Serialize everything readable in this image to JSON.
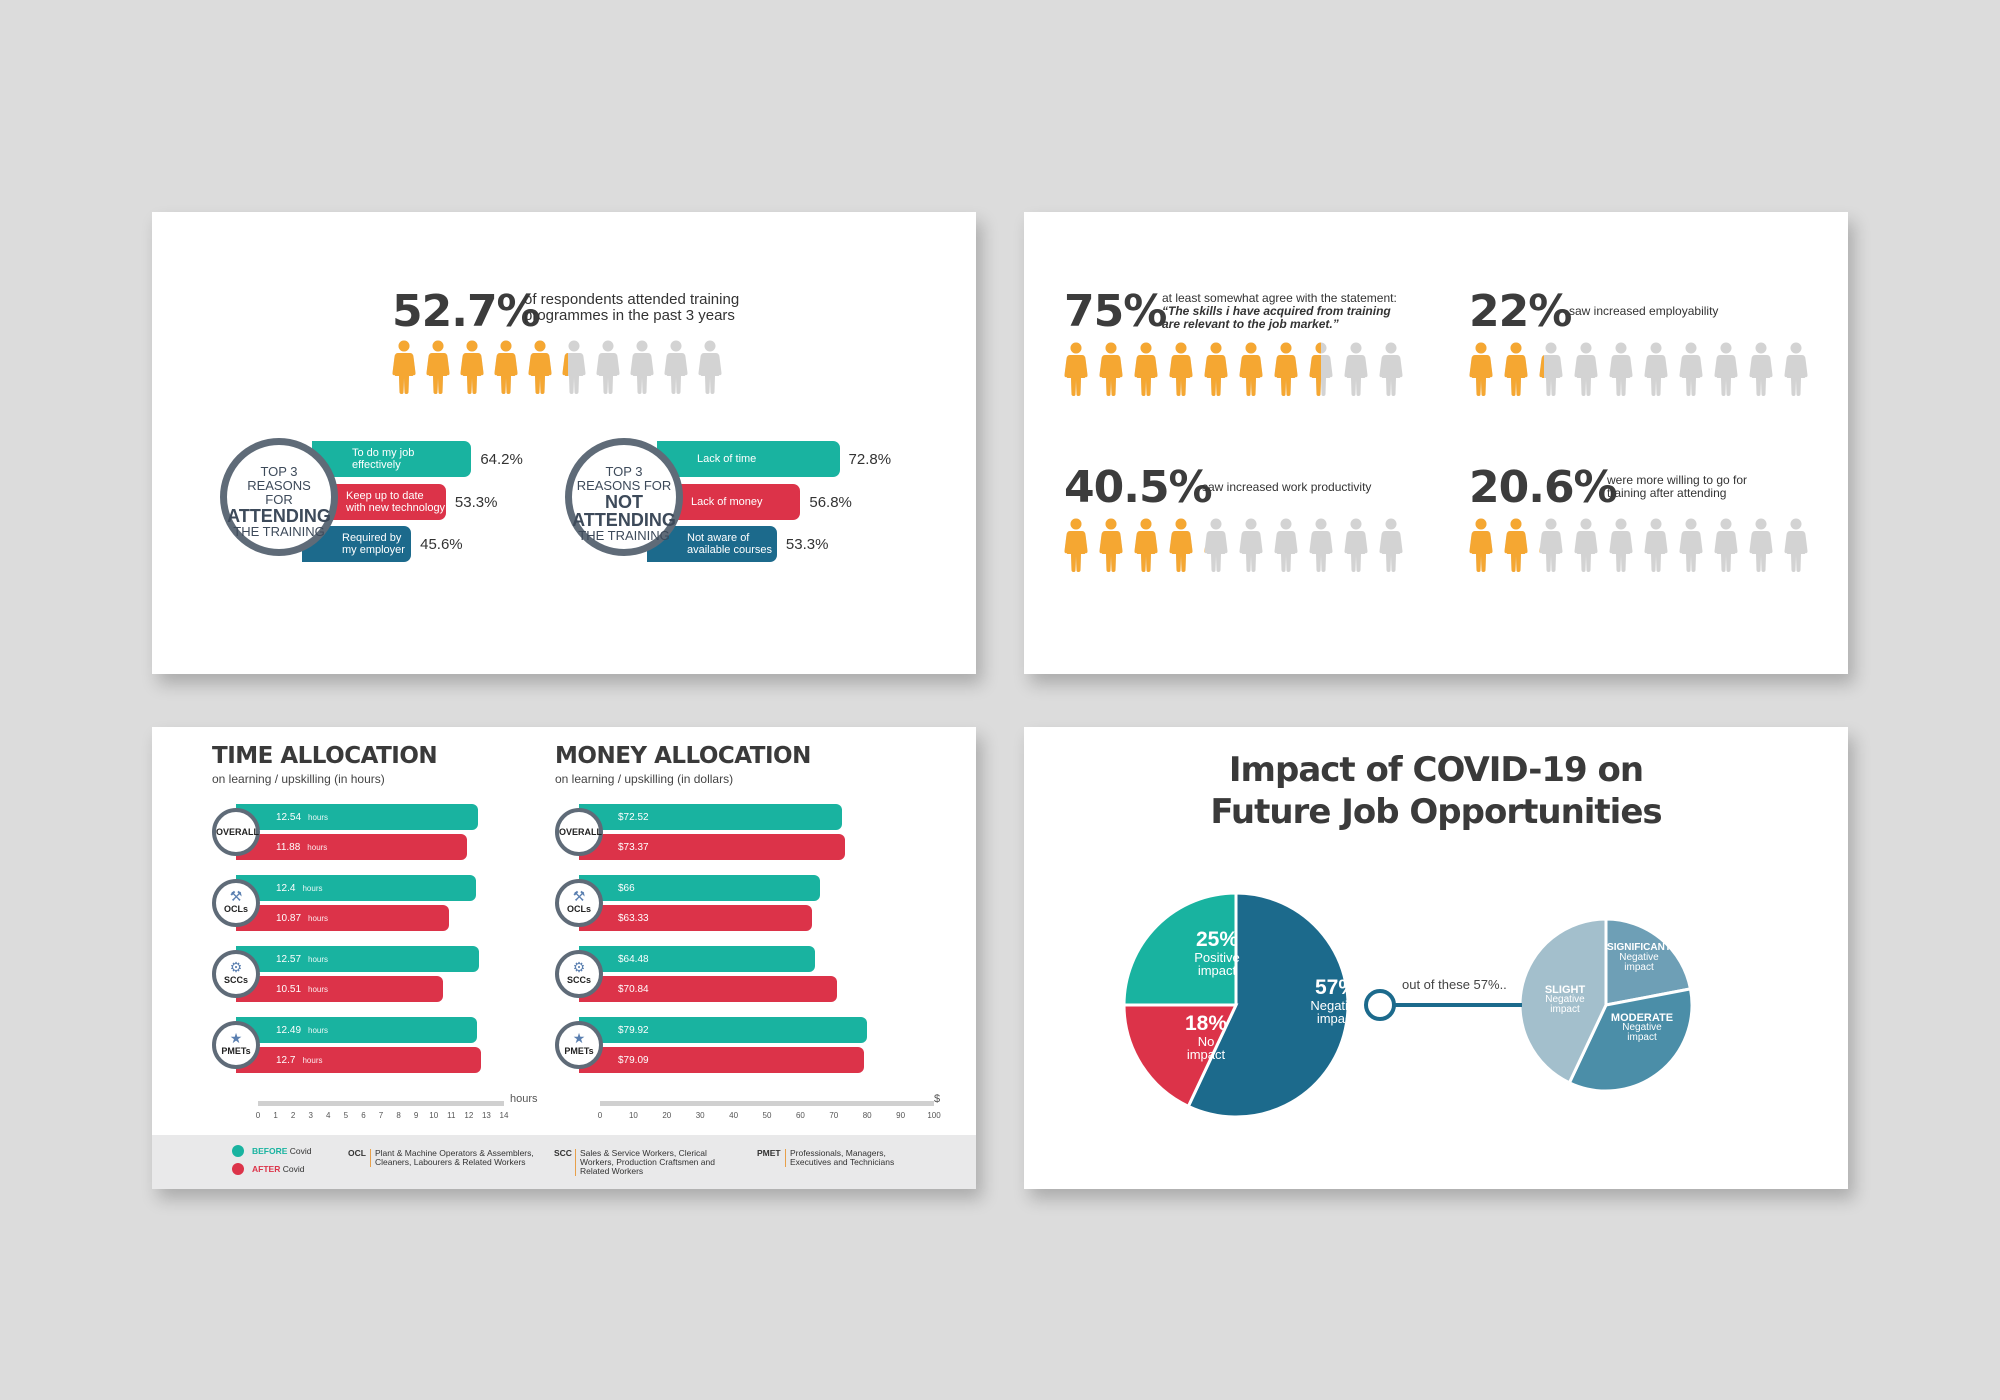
{
  "colors": {
    "orange": "#f5a732",
    "grey_person": "#d3d3d3",
    "teal": "#19b3a0",
    "red": "#dc3349",
    "navy": "#1c6a8c",
    "ring": "#5f6b78",
    "pie_light": "#a3bfcc",
    "pie_mid": "#4b8ea8"
  },
  "slide1": {
    "headline_value": "52.7%",
    "headline_text": "of respondents attended training programmes in the past 3 years",
    "headline_fraction": 0.527,
    "attend": {
      "ring": {
        "line1": "TOP 3",
        "line2": "REASONS",
        "line3": "FOR",
        "line4": "ATTENDING",
        "line5": "THE TRAINING"
      },
      "bars": [
        {
          "label": "To do my job effectively",
          "value": "64.2%",
          "pct": 64.2,
          "color": "teal"
        },
        {
          "label": "Keep up to date with new technology",
          "value": "53.3%",
          "pct": 53.3,
          "color": "red"
        },
        {
          "label": "Required by my employer",
          "value": "45.6%",
          "pct": 45.6,
          "color": "navy"
        }
      ]
    },
    "not_attend": {
      "ring": {
        "line1": "TOP 3",
        "line2": "REASONS FOR",
        "line3": "NOT",
        "line4": "ATTENDING",
        "line5": "THE TRAINING"
      },
      "bars": [
        {
          "label": "Lack of time",
          "value": "72.8%",
          "pct": 72.8,
          "color": "teal"
        },
        {
          "label": "Lack of money",
          "value": "56.8%",
          "pct": 56.8,
          "color": "red"
        },
        {
          "label": "Not aware of available courses",
          "value": "53.3%",
          "pct": 53.3,
          "color": "navy"
        }
      ]
    }
  },
  "slide2": {
    "stats": [
      {
        "value": "75%",
        "fraction": 0.75,
        "text_plain": "at least somewhat agree with the statement:",
        "text_quote": "“The skills i have acquired from training are relevant to the job market.”"
      },
      {
        "value": "22%",
        "fraction": 0.22,
        "text_plain": "saw increased employability",
        "text_quote": ""
      },
      {
        "value": "40.5%",
        "fraction": 0.405,
        "text_plain": "saw increased work productivity",
        "text_quote": ""
      },
      {
        "value": "20.6%",
        "fraction": 0.206,
        "text_plain": "were more willing to go for training after attending",
        "text_quote": ""
      }
    ]
  },
  "slide3": {
    "time": {
      "title": "TIME ALLOCATION",
      "subtitle": "on learning / upskilling (in hours)",
      "unit": "hours",
      "axis_unit": "hours",
      "ticks": [
        "0",
        "1",
        "2",
        "3",
        "4",
        "5",
        "6",
        "7",
        "8",
        "9",
        "10",
        "11",
        "12",
        "13",
        "14"
      ],
      "max": 14
    },
    "money": {
      "title": "MONEY ALLOCATION",
      "subtitle": "on learning / upskilling (in dollars)",
      "axis_unit": "$",
      "ticks": [
        "0",
        "10",
        "20",
        "30",
        "40",
        "50",
        "60",
        "70",
        "80",
        "90",
        "100"
      ],
      "max": 100
    },
    "groups": [
      {
        "name": "OVERALL",
        "icon": "",
        "time_before": "12.54",
        "time_after": "11.88",
        "money_before": "$72.52",
        "money_after": "$73.37",
        "tb": 12.54,
        "ta": 11.88,
        "mb": 72.52,
        "ma": 73.37
      },
      {
        "name": "OCLs",
        "icon": "worker-icon",
        "time_before": "12.4",
        "time_after": "10.87",
        "money_before": "$66",
        "money_after": "$63.33",
        "tb": 12.4,
        "ta": 10.87,
        "mb": 66,
        "ma": 63.33
      },
      {
        "name": "SCCs",
        "icon": "craftsman-icon",
        "time_before": "12.57",
        "time_after": "10.51",
        "money_before": "$64.48",
        "money_after": "$70.84",
        "tb": 12.57,
        "ta": 10.51,
        "mb": 64.48,
        "ma": 70.84
      },
      {
        "name": "PMETs",
        "icon": "professional-icon",
        "time_before": "12.49",
        "time_after": "12.7",
        "money_before": "$79.92",
        "money_after": "$79.09",
        "tb": 12.49,
        "ta": 12.7,
        "mb": 79.92,
        "ma": 79.09
      }
    ],
    "legend": {
      "before_bold": "BEFORE",
      "before_rest": "Covid",
      "after_bold": "AFTER",
      "after_rest": "Covid"
    },
    "footnotes": [
      {
        "abbr": "OCL",
        "text": "Plant & Machine Operators & Assemblers, Cleaners, Labourers & Related Workers"
      },
      {
        "abbr": "SCC",
        "text": "Sales & Service Workers, Clerical Workers, Production Craftsmen and Related Workers"
      },
      {
        "abbr": "PMET",
        "text": "Professionals, Managers, Executives and Technicians"
      }
    ]
  },
  "slide4": {
    "title_line1": "Impact of COVID-19 on",
    "title_line2": "Future Job Opportunities",
    "connector_text": "out of these 57%..",
    "chart_data": [
      {
        "type": "pie",
        "title": "Impact of COVID-19 on Future Job Opportunities",
        "slices": [
          {
            "label": "Positive impact",
            "value": 25,
            "color": "#19b3a0"
          },
          {
            "label": "Negative impact",
            "value": 57,
            "color": "#1c6a8c"
          },
          {
            "label": "No impact",
            "value": 18,
            "color": "#dc3349"
          }
        ]
      },
      {
        "type": "pie",
        "title": "",
        "slices": [
          {
            "label": "SIGNIFICANT",
            "sublabel": "Negative impact",
            "value": 22,
            "color": "#6e9fb6"
          },
          {
            "label": "MODERATE",
            "sublabel": "Negative impact",
            "value": 35,
            "color": "#4b8ea8"
          },
          {
            "label": "SLIGHT",
            "sublabel": "Negative impact",
            "value": 43,
            "color": "#a3bfcc"
          }
        ]
      }
    ],
    "labels": {
      "positive_pct": "25%",
      "positive_l1": "Positive",
      "positive_l2": "impact",
      "negative_pct": "57%",
      "negative_l1": "Negative",
      "negative_l2": "impact",
      "none_pct": "18%",
      "none_l1": "No",
      "none_l2": "impact",
      "sig_l1": "SIGNIFICANT",
      "sig_l2": "Negative",
      "sig_l3": "impact",
      "mod_l1": "MODERATE",
      "mod_l2": "Negative",
      "mod_l3": "impact",
      "sli_l1": "SLIGHT",
      "sli_l2": "Negative",
      "sli_l3": "impact"
    }
  }
}
